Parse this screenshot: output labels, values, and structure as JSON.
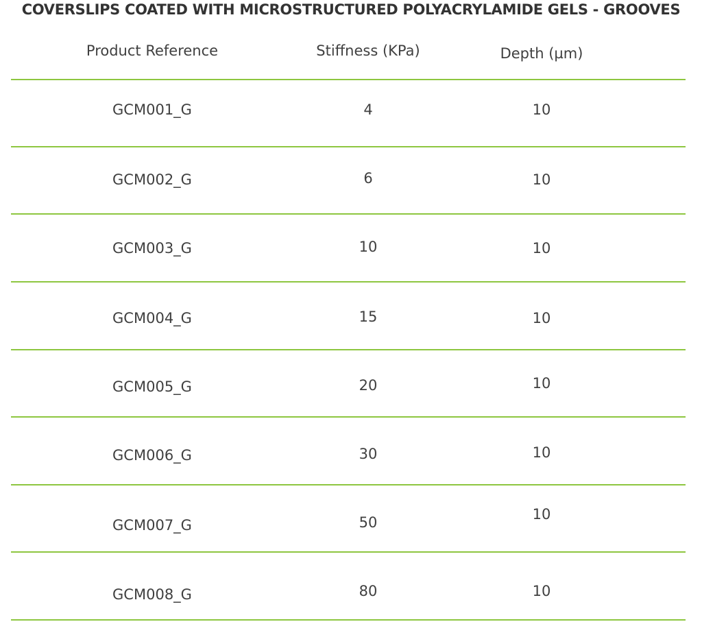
{
  "title": "COVERSLIPS COATED WITH MICROSTRUCTURED POLYACRYLAMIDE GELS - GROOVES",
  "table": {
    "headers": [
      "Product Reference",
      "Stiffness (KPa)",
      "Depth (µm)"
    ],
    "rows": [
      [
        "GCM001_G",
        "4",
        "10"
      ],
      [
        "GCM002_G",
        "6",
        "10"
      ],
      [
        "GCM003_G",
        "10",
        "10"
      ],
      [
        "GCM004_G",
        "15",
        "10"
      ],
      [
        "GCM005_G",
        "20",
        "10"
      ],
      [
        "GCM006_G",
        "30",
        "10"
      ],
      [
        "GCM007_G",
        "50",
        "10"
      ],
      [
        "GCM008_G",
        "80",
        "10"
      ]
    ]
  },
  "colors": {
    "rule": "#8dc63f",
    "text": "#404040"
  }
}
